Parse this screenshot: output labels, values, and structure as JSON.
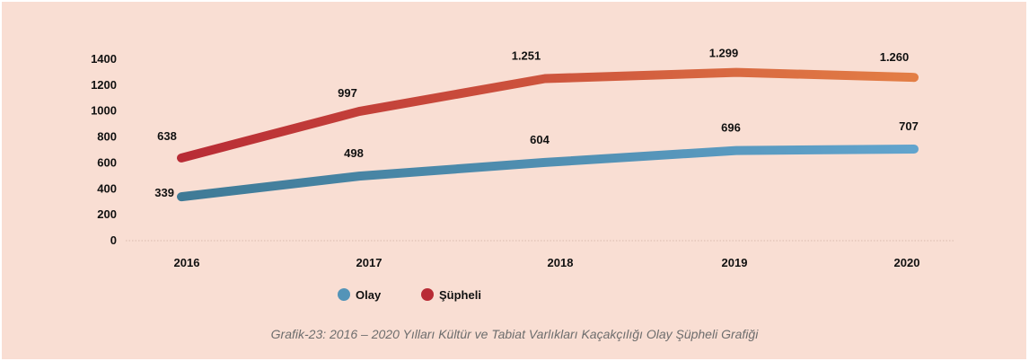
{
  "chart_data": {
    "type": "line",
    "categories": [
      "2016",
      "2017",
      "2018",
      "2019",
      "2020"
    ],
    "series": [
      {
        "name": "Olay",
        "values": [
          339,
          498,
          604,
          696,
          707
        ],
        "labels": [
          "339",
          "498",
          "604",
          "696",
          "707"
        ],
        "color": "#5494b8"
      },
      {
        "name": "Şüpheli",
        "values": [
          638,
          997,
          1251,
          1299,
          1260
        ],
        "labels": [
          "638",
          "997",
          "1.251",
          "1.299",
          "1.260"
        ],
        "color": "#d85c45",
        "gradient": [
          "#b82b35",
          "#e37e45"
        ]
      }
    ],
    "yticks": [
      "0",
      "200",
      "400",
      "600",
      "800",
      "1000",
      "1200",
      "1400"
    ],
    "ylim": [
      0,
      1400
    ],
    "grid": false,
    "legend_position": "bottom-left",
    "caption": "Grafik-23: 2016 – 2020 Yılları Kültür ve Tabiat Varlıkları Kaçakçılığı Olay Şüpheli Grafiği"
  }
}
